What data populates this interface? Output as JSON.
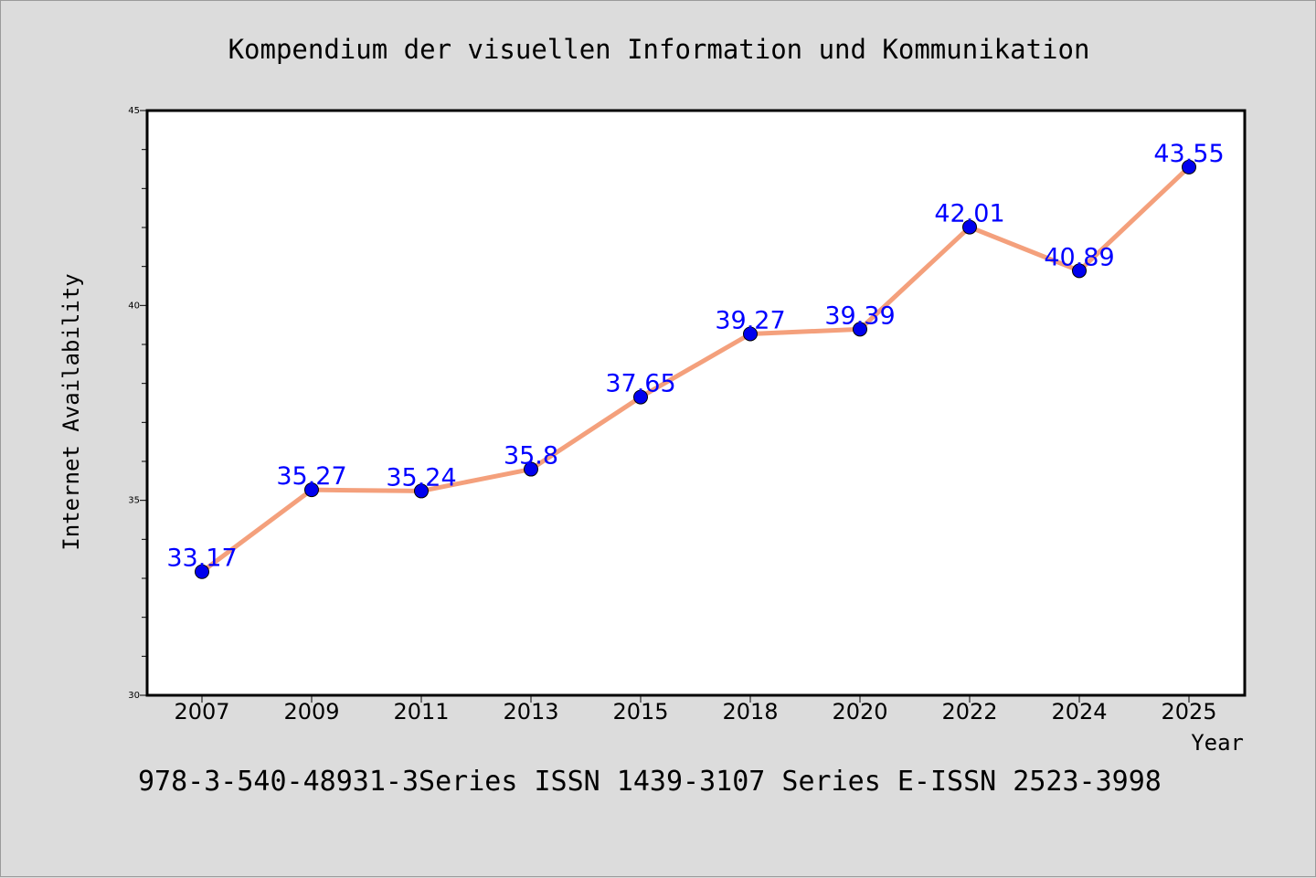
{
  "chart_data": {
    "type": "line",
    "title": "Kompendium der visuellen Information und Kommunikation",
    "xlabel": "Year",
    "ylabel": "Internet Availability",
    "categories": [
      "2007",
      "2009",
      "2011",
      "2013",
      "2015",
      "2018",
      "2020",
      "2022",
      "2024",
      "2025"
    ],
    "series": [
      {
        "values": [
          33.17,
          35.27,
          35.24,
          35.8,
          37.65,
          39.27,
          39.39,
          42.01,
          40.89,
          43.55
        ]
      }
    ],
    "data_labels": [
      "33.17",
      "35.27",
      "35.24",
      "35.8",
      "37.65",
      "39.27",
      "39.39",
      "42.01",
      "40.89",
      "43.55"
    ],
    "ylim": [
      30,
      45
    ],
    "yticks": [
      "30",
      "35",
      "40",
      "45"
    ],
    "grid": false,
    "legend": "none",
    "colors": {
      "line": "#f4a07c",
      "marker": "#0000ee",
      "data_label": "#0000ff",
      "background": "#dcdcdc",
      "plot_background": "#ffffff"
    },
    "footer": "978-3-540-48931-3Series ISSN 1439-3107 Series E-ISSN 2523-3998"
  }
}
